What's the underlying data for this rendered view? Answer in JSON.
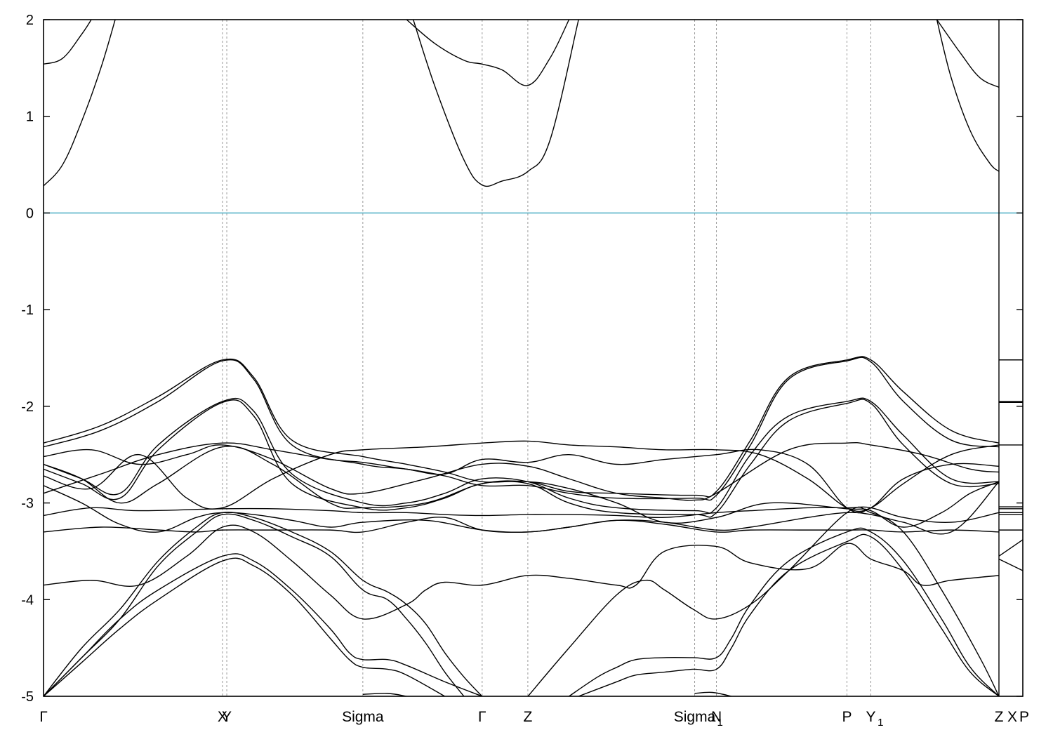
{
  "chart_data": {
    "type": "line",
    "title": "",
    "xlabel": "",
    "ylabel": "",
    "ylim": [
      -5,
      2
    ],
    "yticks": [
      2,
      1,
      0,
      -1,
      -2,
      -3,
      -4,
      -5
    ],
    "xlim": [
      0,
      1
    ],
    "grid": "vertical dashed lines at high-symmetry points",
    "fermi_level": {
      "value": 0,
      "color": "#5ab4c8"
    },
    "kpoints": [
      {
        "label": "Γ",
        "sub": "",
        "x": 0.0
      },
      {
        "label": "X",
        "sub": "",
        "x": 0.1873,
        "show_line": true
      },
      {
        "label": "Y",
        "sub": "",
        "x": 0.1918,
        "show_line": true
      },
      {
        "label": "Sigma",
        "sub": "",
        "x": 0.3342,
        "show_line": true
      },
      {
        "label": "Γ",
        "sub": "",
        "x": 0.4591,
        "show_line": true
      },
      {
        "label": "Z",
        "sub": "",
        "x": 0.5069,
        "show_line": true
      },
      {
        "label": "Sigma",
        "sub": "1",
        "x": 0.6815,
        "show_line": true
      },
      {
        "label": "N",
        "sub": "",
        "x": 0.7043,
        "show_line": true
      },
      {
        "label": "P",
        "sub": "",
        "x": 0.8409,
        "show_line": true
      },
      {
        "label": "Y",
        "sub": "1",
        "x": 0.8659,
        "show_line": true
      },
      {
        "label": "Z",
        "sub": "",
        "x": 1.0,
        "show_line": false
      },
      {
        "label": "X",
        "sub": "",
        "x": 1.0133,
        "show_line": false
      },
      {
        "label": "P",
        "sub": "",
        "x": 1.0266,
        "show_line": false
      }
    ],
    "series": [
      {
        "x": [
          0.0,
          0.02,
          0.04,
          0.05
        ],
        "y": [
          1.54,
          1.6,
          1.85,
          2.0
        ]
      },
      {
        "x": [
          0.0,
          0.02,
          0.04,
          0.06,
          0.075
        ],
        "y": [
          0.28,
          0.5,
          0.95,
          1.5,
          2.0
        ]
      },
      {
        "x": [
          0.387,
          0.41,
          0.44,
          0.459,
          0.48,
          0.507,
          0.53,
          0.56
        ],
        "y": [
          2.0,
          1.3,
          0.55,
          0.29,
          0.33,
          0.43,
          0.75,
          2.0
        ]
      },
      {
        "x": [
          0.38,
          0.41,
          0.44,
          0.459,
          0.48,
          0.507,
          0.53,
          0.55
        ],
        "y": [
          2.0,
          1.75,
          1.58,
          1.54,
          1.48,
          1.32,
          1.6,
          2.0
        ]
      },
      {
        "x": [
          0.935,
          0.96,
          0.98,
          1.0
        ],
        "y": [
          2.0,
          1.65,
          1.4,
          1.3
        ]
      },
      {
        "x": [
          0.935,
          0.95,
          0.97,
          0.99,
          1.0
        ],
        "y": [
          2.0,
          1.4,
          0.85,
          0.52,
          0.43
        ]
      },
      {
        "x": [
          0.0,
          0.06,
          0.12,
          0.1873,
          0.22,
          0.26,
          0.3342,
          0.38,
          0.42,
          0.459,
          0.507,
          0.55,
          0.6,
          0.6815,
          0.7043,
          0.74,
          0.78,
          0.8409,
          0.8659,
          0.9,
          0.95,
          1.0
        ],
        "y": [
          -2.38,
          -2.2,
          -1.9,
          -1.52,
          -1.7,
          -2.35,
          -2.52,
          -2.6,
          -2.68,
          -2.78,
          -2.78,
          -2.88,
          -2.9,
          -2.92,
          -2.88,
          -2.35,
          -1.7,
          -1.52,
          -1.52,
          -1.85,
          -2.25,
          -2.38
        ]
      },
      {
        "x": [
          0.0,
          0.06,
          0.12,
          0.1873,
          0.22,
          0.26,
          0.3342,
          0.38,
          0.42,
          0.459,
          0.507,
          0.55,
          0.6,
          0.6815,
          0.7043,
          0.74,
          0.78,
          0.8409,
          0.8659,
          0.9,
          0.95,
          1.0
        ],
        "y": [
          -2.42,
          -2.25,
          -1.95,
          -1.53,
          -1.72,
          -2.4,
          -2.6,
          -2.65,
          -2.72,
          -2.82,
          -2.82,
          -2.9,
          -2.95,
          -2.95,
          -2.92,
          -2.4,
          -1.72,
          -1.53,
          -1.54,
          -1.95,
          -2.35,
          -2.42
        ]
      },
      {
        "x": [
          0.0,
          0.04,
          0.08,
          0.12,
          0.1873,
          0.22,
          0.26,
          0.3342,
          0.38,
          0.42,
          0.459,
          0.507,
          0.55,
          0.6,
          0.6815,
          0.7043,
          0.74,
          0.78,
          0.8409,
          0.8659,
          0.9,
          0.95,
          1.0
        ],
        "y": [
          -2.6,
          -2.75,
          -2.9,
          -2.4,
          -1.95,
          -2.05,
          -2.7,
          -3.0,
          -3.0,
          -2.9,
          -2.75,
          -2.78,
          -2.95,
          -3.05,
          -3.08,
          -3.05,
          -2.5,
          -2.1,
          -1.95,
          -1.95,
          -2.3,
          -2.75,
          -2.78
        ]
      },
      {
        "x": [
          0.0,
          0.04,
          0.08,
          0.12,
          0.1873,
          0.22,
          0.26,
          0.3342,
          0.38,
          0.42,
          0.459,
          0.507,
          0.55,
          0.6,
          0.6815,
          0.7043,
          0.74,
          0.78,
          0.8409,
          0.8659,
          0.9,
          0.95,
          1.0
        ],
        "y": [
          -2.65,
          -2.8,
          -2.95,
          -2.45,
          -1.96,
          -2.1,
          -2.8,
          -3.05,
          -3.05,
          -2.95,
          -2.8,
          -2.8,
          -3.0,
          -3.1,
          -3.12,
          -3.1,
          -2.6,
          -2.15,
          -1.97,
          -1.97,
          -2.4,
          -2.8,
          -2.8
        ]
      },
      {
        "x": [
          0.0,
          0.05,
          0.1,
          0.15,
          0.1873,
          0.24,
          0.3,
          0.3342,
          0.4,
          0.459,
          0.507,
          0.55,
          0.6,
          0.65,
          0.6815,
          0.7043,
          0.78,
          0.8409,
          0.8659,
          0.92,
          0.97,
          1.0
        ],
        "y": [
          -2.52,
          -2.45,
          -2.6,
          -2.5,
          -2.4,
          -2.55,
          -2.85,
          -2.9,
          -2.75,
          -2.6,
          -2.62,
          -2.75,
          -2.9,
          -2.95,
          -2.97,
          -2.9,
          -2.45,
          -2.38,
          -2.4,
          -2.5,
          -2.65,
          -2.68
        ]
      },
      {
        "x": [
          0.0,
          0.06,
          0.12,
          0.1873,
          0.24,
          0.3,
          0.3342,
          0.38,
          0.42,
          0.459,
          0.507,
          0.55,
          0.6,
          0.65,
          0.7043,
          0.75,
          0.8,
          0.8409,
          0.8659,
          0.9,
          0.95,
          1.0
        ],
        "y": [
          -2.9,
          -2.7,
          -2.5,
          -2.38,
          -2.45,
          -2.55,
          -2.58,
          -2.65,
          -2.7,
          -2.55,
          -2.58,
          -2.5,
          -2.6,
          -2.55,
          -2.5,
          -2.45,
          -2.6,
          -3.05,
          -3.05,
          -2.75,
          -2.6,
          -2.62
        ]
      },
      {
        "x": [
          0.0,
          0.05,
          0.1,
          0.15,
          0.1873,
          0.24,
          0.3,
          0.3342,
          0.4,
          0.459,
          0.507,
          0.55,
          0.6,
          0.65,
          0.7043,
          0.75,
          0.8,
          0.8409,
          0.8659,
          0.9,
          0.95,
          1.0
        ],
        "y": [
          -2.72,
          -2.85,
          -2.5,
          -2.95,
          -3.05,
          -2.75,
          -2.5,
          -2.45,
          -2.42,
          -2.38,
          -2.36,
          -2.4,
          -2.42,
          -2.45,
          -2.45,
          -2.5,
          -2.75,
          -3.05,
          -3.05,
          -2.8,
          -2.5,
          -2.4
        ]
      },
      {
        "x": [
          0.0,
          0.05,
          0.1,
          0.1873,
          0.24,
          0.3,
          0.3342,
          0.38,
          0.42,
          0.459,
          0.507,
          0.55,
          0.6,
          0.65,
          0.7043,
          0.74,
          0.8,
          0.8409,
          0.8659,
          0.9,
          0.95,
          1.0
        ],
        "y": [
          -3.13,
          -3.05,
          -3.08,
          -3.06,
          -3.06,
          -3.08,
          -3.1,
          -3.1,
          -3.12,
          -3.13,
          -3.12,
          -3.12,
          -3.13,
          -3.15,
          -3.1,
          -3.08,
          -3.05,
          -3.05,
          -3.05,
          -3.15,
          -3.2,
          -3.1
        ]
      },
      {
        "x": [
          0.0,
          0.04,
          0.08,
          0.12,
          0.1873,
          0.24,
          0.3,
          0.3342,
          0.4,
          0.459,
          0.507,
          0.55,
          0.6,
          0.65,
          0.7043,
          0.76,
          0.8409,
          0.8659,
          0.9,
          0.94,
          0.97,
          1.0
        ],
        "y": [
          -2.6,
          -2.75,
          -3.0,
          -2.8,
          -2.42,
          -2.6,
          -3.0,
          -3.05,
          -3.0,
          -2.8,
          -2.78,
          -2.85,
          -3.0,
          -3.2,
          -3.15,
          -3.0,
          -3.06,
          -3.08,
          -3.25,
          -3.1,
          -2.9,
          -2.78
        ]
      },
      {
        "x": [
          0.0,
          0.04,
          0.08,
          0.12,
          0.16,
          0.1873,
          0.22,
          0.26,
          0.3,
          0.3342,
          0.4,
          0.459,
          0.507,
          0.55,
          0.6,
          0.65,
          0.7043,
          0.74,
          0.8,
          0.8409,
          0.8659,
          0.9,
          0.95,
          1.0
        ],
        "y": [
          -2.82,
          -3.0,
          -3.22,
          -3.3,
          -3.15,
          -3.1,
          -3.12,
          -3.18,
          -3.25,
          -3.2,
          -3.18,
          -3.28,
          -3.3,
          -3.25,
          -3.18,
          -3.2,
          -3.28,
          -3.25,
          -3.15,
          -3.1,
          -3.12,
          -3.2,
          -3.3,
          -2.78
        ]
      },
      {
        "x": [
          0.0,
          0.06,
          0.12,
          0.16,
          0.1873,
          0.24,
          0.3,
          0.3342,
          0.38,
          0.42,
          0.459,
          0.507,
          0.55,
          0.6,
          0.65,
          0.7043,
          0.74,
          0.8,
          0.8409,
          0.8659,
          0.9,
          0.95,
          1.0
        ],
        "y": [
          -3.3,
          -3.25,
          -3.28,
          -3.3,
          -3.28,
          -3.28,
          -3.28,
          -3.3,
          -3.2,
          -3.15,
          -3.28,
          -3.3,
          -3.25,
          -3.18,
          -3.22,
          -3.3,
          -3.28,
          -3.28,
          -3.28,
          -3.28,
          -3.3,
          -3.28,
          -3.3
        ]
      },
      {
        "x": [
          0.0,
          0.05,
          0.1,
          0.15,
          0.1873,
          0.22,
          0.26,
          0.3,
          0.3342,
          0.38,
          0.4,
          0.42,
          0.459,
          0.507,
          0.55,
          0.6,
          0.62,
          0.65,
          0.7043,
          0.74,
          0.8,
          0.8409,
          0.8659,
          0.9,
          0.92,
          0.95,
          1.0
        ],
        "y": [
          -3.85,
          -3.8,
          -3.85,
          -3.55,
          -3.25,
          -3.3,
          -3.6,
          -3.95,
          -4.2,
          -4.05,
          -3.9,
          -3.82,
          -3.85,
          -3.75,
          -3.78,
          -3.85,
          -3.85,
          -3.5,
          -3.45,
          -3.62,
          -3.68,
          -3.42,
          -3.58,
          -3.7,
          -3.85,
          -3.8,
          -3.75
        ]
      },
      {
        "x": [
          0.0,
          0.04,
          0.08,
          0.12,
          0.16,
          0.1873,
          0.22,
          0.26,
          0.3,
          0.3342,
          0.36,
          0.38,
          0.4,
          0.42,
          0.44,
          0.459
        ],
        "y": [
          -5.0,
          -4.5,
          -4.1,
          -3.6,
          -3.25,
          -3.1,
          -3.15,
          -3.3,
          -3.5,
          -3.8,
          -3.92,
          -4.05,
          -4.25,
          -4.55,
          -4.8,
          -5.0
        ]
      },
      {
        "x": [
          0.0,
          0.04,
          0.08,
          0.12,
          0.16,
          0.1873,
          0.22,
          0.26,
          0.3,
          0.3342,
          0.36,
          0.38,
          0.4,
          0.42,
          0.44
        ],
        "y": [
          -5.0,
          -4.6,
          -4.2,
          -3.65,
          -3.3,
          -3.12,
          -3.18,
          -3.35,
          -3.55,
          -3.9,
          -4.0,
          -4.2,
          -4.45,
          -4.75,
          -5.0
        ]
      },
      {
        "x": [
          0.0,
          0.04,
          0.08,
          0.12,
          0.1873,
          0.22,
          0.26,
          0.3,
          0.32,
          0.3342,
          0.36,
          0.38,
          0.42,
          0.459
        ],
        "y": [
          -5.0,
          -4.6,
          -4.2,
          -3.9,
          -3.55,
          -3.6,
          -3.9,
          -4.3,
          -4.55,
          -4.62,
          -4.62,
          -4.68,
          -4.85,
          -5.0
        ]
      },
      {
        "x": [
          0.0,
          0.04,
          0.08,
          0.12,
          0.1873,
          0.22,
          0.26,
          0.3,
          0.32,
          0.3342,
          0.36,
          0.38,
          0.42
        ],
        "y": [
          -5.0,
          -4.65,
          -4.3,
          -4.0,
          -3.6,
          -3.65,
          -3.95,
          -4.4,
          -4.62,
          -4.7,
          -4.72,
          -4.78,
          -5.0
        ]
      },
      {
        "x": [
          0.55,
          0.58,
          0.6,
          0.62,
          0.65,
          0.68,
          0.7043,
          0.72,
          0.74,
          0.78,
          0.8409,
          0.8659,
          0.9,
          0.94,
          0.97,
          1.0
        ],
        "y": [
          -5.0,
          -4.8,
          -4.7,
          -4.62,
          -4.6,
          -4.6,
          -4.6,
          -4.4,
          -4.05,
          -3.6,
          -3.3,
          -3.3,
          -3.6,
          -4.2,
          -4.7,
          -5.0
        ]
      },
      {
        "x": [
          0.56,
          0.6,
          0.62,
          0.65,
          0.68,
          0.7043,
          0.72,
          0.74,
          0.78,
          0.8409,
          0.8659,
          0.9,
          0.94,
          0.97,
          1.0
        ],
        "y": [
          -5.0,
          -4.85,
          -4.78,
          -4.75,
          -4.72,
          -4.72,
          -4.5,
          -4.15,
          -3.7,
          -3.4,
          -3.35,
          -3.7,
          -4.3,
          -4.75,
          -5.0
        ]
      },
      {
        "x": [
          0.507,
          0.55,
          0.6,
          0.63,
          0.65,
          0.68,
          0.7043,
          0.74,
          0.78,
          0.8409,
          0.8659,
          0.9,
          0.94,
          0.98,
          1.0
        ],
        "y": [
          -5.0,
          -4.5,
          -3.95,
          -3.8,
          -3.9,
          -4.1,
          -4.2,
          -4.05,
          -3.7,
          -3.1,
          -3.1,
          -3.3,
          -3.9,
          -4.6,
          -5.0
        ]
      },
      {
        "x": [
          0.3342,
          0.36,
          0.38
        ],
        "y": [
          -4.98,
          -4.97,
          -5.0
        ]
      },
      {
        "x": [
          0.6815,
          0.7,
          0.72
        ],
        "y": [
          -4.97,
          -4.96,
          -5.0
        ]
      }
    ],
    "inset_panel": {
      "xlim": [
        1.0,
        1.0266
      ],
      "levels": [
        -1.52,
        -1.95,
        -1.96,
        -2.4,
        -3.04,
        -3.06,
        -3.1,
        -3.12,
        -3.28
      ],
      "slants": [
        {
          "y": [
            -3.55,
            -3.38
          ]
        },
        {
          "y": [
            -3.58,
            -3.7
          ]
        }
      ]
    }
  }
}
